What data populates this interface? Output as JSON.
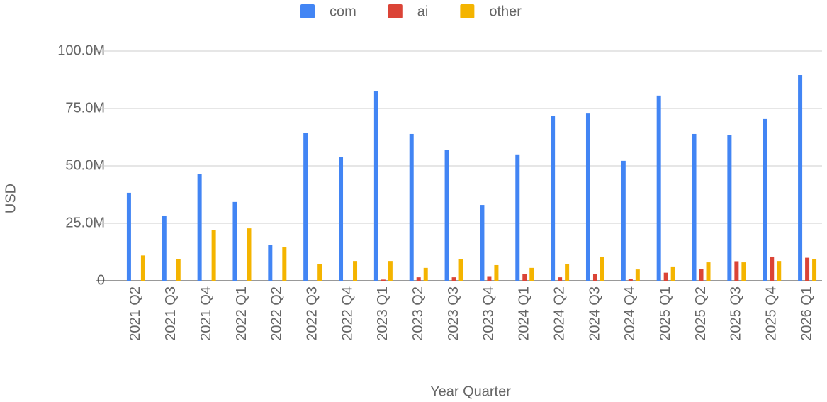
{
  "chart_data": {
    "type": "bar",
    "x_label": "Year Quarter",
    "y_label": "USD",
    "categories": [
      "2021 Q2",
      "2021 Q3",
      "2021 Q4",
      "2022 Q1",
      "2022 Q2",
      "2022 Q3",
      "2022 Q4",
      "2023 Q1",
      "2023 Q2",
      "2023 Q3",
      "2023 Q4",
      "2024 Q1",
      "2024 Q2",
      "2024 Q3",
      "2024 Q4",
      "2025 Q1",
      "2025 Q2",
      "2025 Q3",
      "2025 Q4",
      "2026 Q1"
    ],
    "series": [
      {
        "name": "com",
        "color": "#4285f4",
        "values": [
          38300000,
          28400000,
          46600000,
          34300000,
          15700000,
          64500000,
          53700000,
          82400000,
          63900000,
          56800000,
          33000000,
          55000000,
          71600000,
          72800000,
          52200000,
          80600000,
          63900000,
          63300000,
          70400000,
          89500000
        ]
      },
      {
        "name": "ai",
        "color": "#db4437",
        "values": [
          0,
          0,
          0,
          0,
          0,
          0,
          0,
          500000,
          1500000,
          1500000,
          2000000,
          3000000,
          1500000,
          3000000,
          800000,
          3500000,
          5000000,
          8500000,
          10500000,
          10000000
        ]
      },
      {
        "name": "other",
        "color": "#f4b400",
        "values": [
          11000000,
          9300000,
          22200000,
          22800000,
          14500000,
          7400000,
          8600000,
          8600000,
          5600000,
          9300000,
          6800000,
          5600000,
          7400000,
          10500000,
          4900000,
          6200000,
          8000000,
          8000000,
          8600000,
          9300000
        ]
      }
    ],
    "ylim": [
      0,
      100000000
    ],
    "yticks": [
      0,
      {
        "value": 25000000,
        "label": "25.0M"
      },
      {
        "value": 50000000,
        "label": "50.0M"
      },
      {
        "value": 75000000,
        "label": "75.0M"
      },
      {
        "value": 100000000,
        "label": "100.0M"
      }
    ],
    "grid": true,
    "legend": "top"
  }
}
